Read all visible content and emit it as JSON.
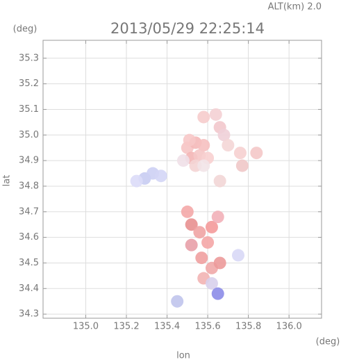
{
  "chart_data": {
    "type": "scatter",
    "title": "2013/05/29 22:25:14",
    "subtitle": "ALT(km) 2.0",
    "x_label": "lon",
    "y_label": "lat",
    "x_unit": "(deg)",
    "y_unit": "(deg)",
    "xlim": [
      134.79,
      136.16
    ],
    "ylim": [
      34.284,
      35.37
    ],
    "xticks": [
      {
        "value": 135.0,
        "label": "135.0"
      },
      135.2,
      135.4,
      135.6,
      135.8,
      {
        "value": 136.0,
        "label": "136.0"
      }
    ],
    "yticks": [
      34.3,
      34.4,
      34.5,
      34.6,
      34.7,
      34.8,
      34.9,
      {
        "value": 35.0,
        "label": "35.0"
      },
      35.1,
      35.2,
      35.3
    ],
    "grid": true,
    "x": [
      135.5,
      135.54,
      135.58,
      135.52,
      135.56,
      135.6,
      135.48,
      135.54,
      135.58,
      135.51,
      135.29,
      135.33,
      135.37,
      135.25,
      135.58,
      135.64,
      135.66,
      135.68,
      135.7,
      135.76,
      135.84,
      135.77,
      135.66,
      135.5,
      135.52,
      135.56,
      135.62,
      135.65,
      135.52,
      135.6,
      135.57,
      135.62,
      135.66,
      135.58,
      135.62,
      135.65,
      135.75,
      135.45
    ],
    "y": [
      34.95,
      34.97,
      34.96,
      34.91,
      34.92,
      34.91,
      34.9,
      34.88,
      34.88,
      34.98,
      34.83,
      34.85,
      34.84,
      34.82,
      35.07,
      35.08,
      35.03,
      35.0,
      34.96,
      34.93,
      34.93,
      34.88,
      34.82,
      34.7,
      34.65,
      34.62,
      34.64,
      34.68,
      34.57,
      34.58,
      34.52,
      34.48,
      34.5,
      34.44,
      34.42,
      34.38,
      34.53,
      34.35
    ],
    "colors": [
      "#f6c4c4",
      "#f4b8b8",
      "#f6c0c0",
      "#f3b5b5",
      "#f5c6c6",
      "#f8d0d0",
      "#f0e0e8",
      "#f4d4d4",
      "#f2e4e8",
      "#f7c8c8",
      "#c8ccf2",
      "#cdd0f4",
      "#d4d6f6",
      "#dcdcf8",
      "#f6cccc",
      "#f4d0d4",
      "#f2c8cc",
      "#f0d0d8",
      "#f4d6d6",
      "#f6d0d0",
      "#f4c8c8",
      "#f0c8c8",
      "#f2d6d6",
      "#f4a8a8",
      "#e89090",
      "#f0a4a4",
      "#f49a9a",
      "#f2b0b8",
      "#e8a0a8",
      "#f4a6a6",
      "#f0a0a0",
      "#f0a8a8",
      "#ec9a9a",
      "#f2b4b4",
      "#d8d0ec",
      "#8c8ce8",
      "#d8d8f6",
      "#c0c4ec"
    ]
  }
}
